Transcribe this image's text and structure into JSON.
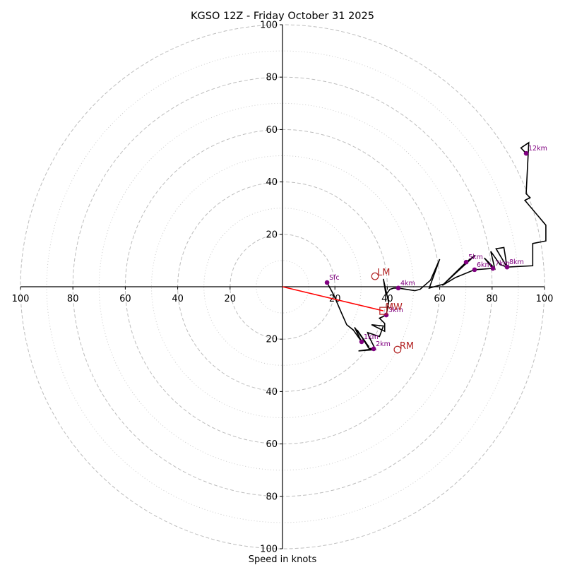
{
  "chart_data": {
    "type": "line",
    "subtype": "hodograph",
    "title": "KGSO 12Z - Friday October 31 2025",
    "xlabel": "Speed in knots",
    "ylabel": "",
    "xlim": [
      -100,
      100
    ],
    "ylim": [
      -100,
      100
    ],
    "ring_major": [
      20,
      40,
      60,
      80,
      100
    ],
    "ring_minor": [
      10,
      30,
      50,
      70,
      90
    ],
    "x_tick_labels": [
      {
        "value": -100,
        "label": "100"
      },
      {
        "value": -80,
        "label": "80"
      },
      {
        "value": -60,
        "label": "60"
      },
      {
        "value": -40,
        "label": "40"
      },
      {
        "value": -20,
        "label": "20"
      },
      {
        "value": 20,
        "label": "20"
      },
      {
        "value": 40,
        "label": "40"
      },
      {
        "value": 60,
        "label": "60"
      },
      {
        "value": 80,
        "label": "80"
      },
      {
        "value": 100,
        "label": "100"
      }
    ],
    "y_tick_labels": [
      {
        "value": 100,
        "label": "100"
      },
      {
        "value": 80,
        "label": "80"
      },
      {
        "value": 60,
        "label": "60"
      },
      {
        "value": 40,
        "label": "40"
      },
      {
        "value": 20,
        "label": "20"
      },
      {
        "value": -20,
        "label": "20"
      },
      {
        "value": -40,
        "label": "40"
      },
      {
        "value": -60,
        "label": "60"
      },
      {
        "value": -80,
        "label": "80"
      },
      {
        "value": -100,
        "label": "100"
      }
    ],
    "grid": true,
    "series": [
      {
        "name": "hodograph-trace",
        "color": "#000000",
        "points": [
          [
            17.0,
            1.6
          ],
          [
            19.5,
            -3.0
          ],
          [
            22.5,
            -10.0
          ],
          [
            24.5,
            -14.5
          ],
          [
            27.0,
            -16.5
          ],
          [
            29.5,
            -20.0
          ],
          [
            30.2,
            -21.0
          ],
          [
            27.5,
            -15.5
          ],
          [
            33.0,
            -23.0
          ],
          [
            28.5,
            -16.5
          ],
          [
            33.0,
            -23.5
          ],
          [
            34.8,
            -23.7
          ],
          [
            29.0,
            -24.5
          ],
          [
            35.5,
            -24.0
          ],
          [
            33.0,
            -19.0
          ],
          [
            32.5,
            -17.5
          ],
          [
            37.0,
            -19.0
          ],
          [
            38.5,
            -15.0
          ],
          [
            34.0,
            -14.5
          ],
          [
            39.0,
            -17.0
          ],
          [
            39.0,
            -14.0
          ],
          [
            37.0,
            -12.0
          ],
          [
            39.6,
            -10.8
          ],
          [
            40.5,
            -6.0
          ],
          [
            38.5,
            3.0
          ],
          [
            39.5,
            -3.0
          ],
          [
            41.0,
            -1.0
          ],
          [
            42.5,
            -0.5
          ],
          [
            44.2,
            -0.5
          ],
          [
            50.5,
            -1.5
          ],
          [
            52.5,
            -1.0
          ],
          [
            56.5,
            2.5
          ],
          [
            60.0,
            10.5
          ],
          [
            56.0,
            -0.5
          ],
          [
            61.5,
            1.0
          ],
          [
            70.1,
            9.4
          ],
          [
            73.5,
            12.0
          ],
          [
            61.0,
            0.5
          ],
          [
            66.0,
            3.5
          ],
          [
            73.3,
            6.5
          ],
          [
            80.3,
            7.0
          ],
          [
            77.0,
            11.0
          ],
          [
            81.0,
            7.0
          ],
          [
            79.5,
            13.5
          ],
          [
            83.0,
            8.5
          ],
          [
            85.7,
            7.5
          ],
          [
            81.5,
            14.5
          ],
          [
            84.5,
            15.0
          ],
          [
            85.7,
            7.5
          ],
          [
            95.5,
            8.0
          ],
          [
            95.5,
            16.5
          ],
          [
            100.5,
            17.5
          ],
          [
            100.5,
            23.5
          ],
          [
            92.5,
            33.0
          ],
          [
            94.5,
            34.0
          ],
          [
            93.0,
            35.5
          ],
          [
            94.0,
            55.0
          ],
          [
            91.0,
            53.0
          ],
          [
            93.0,
            50.9
          ]
        ]
      },
      {
        "name": "mean-wind-vector",
        "color": "#ff0000",
        "points": [
          [
            0,
            0
          ],
          [
            38.5,
            -9.2
          ]
        ]
      }
    ],
    "level_markers": [
      {
        "label": "Sfc",
        "u": 17.0,
        "v": 1.6
      },
      {
        "label": "1km",
        "u": 30.2,
        "v": -21.0
      },
      {
        "label": "2km",
        "u": 34.8,
        "v": -23.7
      },
      {
        "label": "3km",
        "u": 39.6,
        "v": -10.8
      },
      {
        "label": "4km",
        "u": 44.2,
        "v": -0.5
      },
      {
        "label": "5km",
        "u": 70.1,
        "v": 9.4
      },
      {
        "label": "6km",
        "u": 73.3,
        "v": 6.5
      },
      {
        "label": "7km",
        "u": 80.3,
        "v": 7.0
      },
      {
        "label": "8km",
        "u": 85.7,
        "v": 7.5
      },
      {
        "label": "12km",
        "u": 93.0,
        "v": 50.9
      }
    ],
    "storm_motion_markers": [
      {
        "label": "LM",
        "u": 35.3,
        "v": 4.0,
        "shape": "circle"
      },
      {
        "label": "MW",
        "u": 38.5,
        "v": -9.2,
        "shape": "square"
      },
      {
        "label": "RM",
        "u": 43.9,
        "v": -24.0,
        "shape": "circle"
      }
    ],
    "colors": {
      "trace": "#000000",
      "level_marker": "#800080",
      "storm_marker": "#b22222",
      "mean_wind": "#ff0000",
      "grid": "#bdbdbd",
      "axis": "#000000"
    }
  }
}
